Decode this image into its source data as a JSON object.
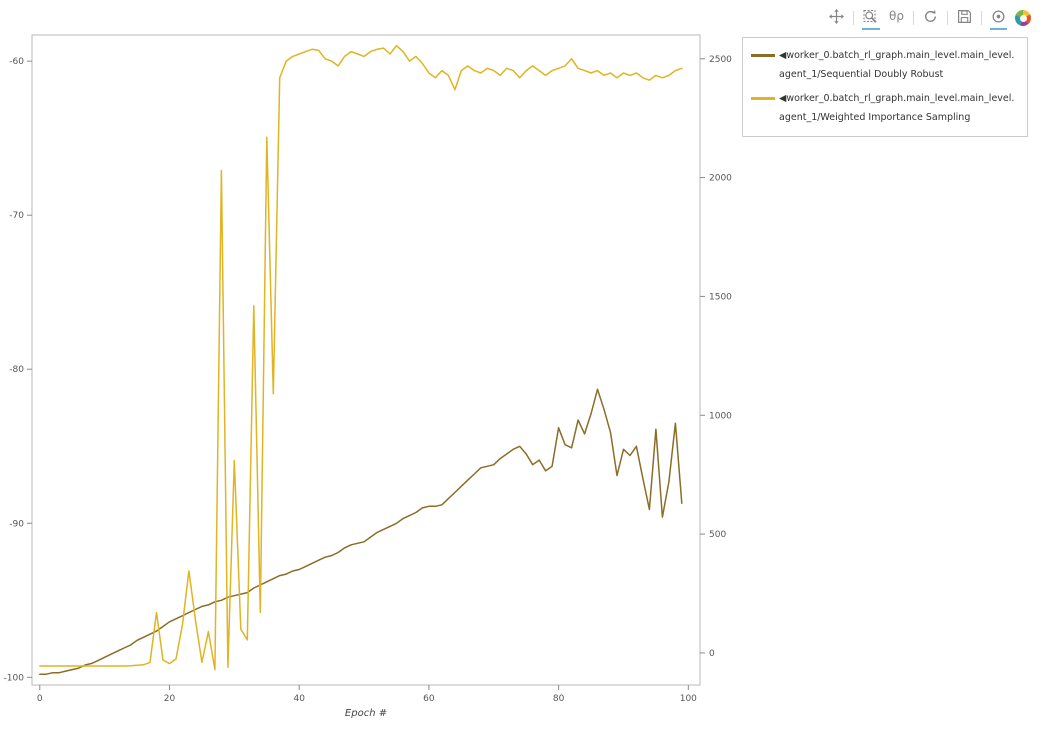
{
  "toolbar": {
    "tools": [
      "pan",
      "box-zoom",
      "wheel-zoom",
      "reset",
      "save",
      "hover"
    ],
    "active_tools": [
      "box-zoom",
      "hover"
    ],
    "wheel_zoom_glyph": "θρ",
    "icons": {
      "pan": "four-arrow-cross",
      "box-zoom": "magnifier-with-dashed-box",
      "wheel-zoom": "θρ",
      "reset": "circular-arrow",
      "save": "floppy-disk",
      "hover": "circle-with-dot",
      "logo": "bokeh-color-wheel"
    },
    "accent_color": "#73b0dd"
  },
  "legend": {
    "entries": [
      {
        "marker": "◀",
        "label": "worker_0.batch_rl_graph.main_level.main_level.agent_1/Sequential Doubly Robust",
        "color": "#8a6d26"
      },
      {
        "marker": "◀",
        "label": "worker_0.batch_rl_graph.main_level.main_level.agent_1/Weighted Importance Sampling",
        "color": "#e0b422"
      }
    ]
  },
  "chart_data": {
    "type": "line",
    "title": "",
    "xlabel": "Epoch #",
    "ylabel": "",
    "grid": false,
    "legend_position": "outside-top-right",
    "x_range": [
      -1.2,
      101.8
    ],
    "y_left_range": [
      -100.5,
      -58.3
    ],
    "y_right_range": [
      -135,
      2600
    ],
    "x_ticks": [
      0,
      20,
      40,
      60,
      80,
      100
    ],
    "y_left_ticks": [
      -100,
      -90,
      -80,
      -70,
      -60
    ],
    "y_right_ticks": [
      0,
      500,
      1000,
      1500,
      2000,
      2500
    ],
    "series": [
      {
        "name": "worker_0.batch_rl_graph.main_level.main_level.agent_1/Sequential Doubly Robust",
        "axis": "left",
        "color": "#8a6d26",
        "x": [
          0,
          1,
          2,
          3,
          4,
          5,
          6,
          7,
          8,
          9,
          10,
          11,
          12,
          13,
          14,
          15,
          16,
          17,
          18,
          19,
          20,
          21,
          22,
          23,
          24,
          25,
          26,
          27,
          28,
          29,
          30,
          31,
          32,
          33,
          34,
          35,
          36,
          37,
          38,
          39,
          40,
          41,
          42,
          43,
          44,
          45,
          46,
          47,
          48,
          49,
          50,
          51,
          52,
          53,
          54,
          55,
          56,
          57,
          58,
          59,
          60,
          61,
          62,
          63,
          64,
          65,
          66,
          67,
          68,
          69,
          70,
          71,
          72,
          73,
          74,
          75,
          76,
          77,
          78,
          79,
          80,
          81,
          82,
          83,
          84,
          85,
          86,
          87,
          88,
          89,
          90,
          91,
          92,
          93,
          94,
          95,
          96,
          97,
          98,
          99
        ],
        "y": [
          -99.8,
          -99.8,
          -99.7,
          -99.7,
          -99.6,
          -99.5,
          -99.4,
          -99.2,
          -99.1,
          -98.9,
          -98.7,
          -98.5,
          -98.3,
          -98.1,
          -97.9,
          -97.6,
          -97.4,
          -97.2,
          -97.0,
          -96.7,
          -96.4,
          -96.2,
          -96.0,
          -95.8,
          -95.6,
          -95.4,
          -95.3,
          -95.1,
          -95.0,
          -94.8,
          -94.7,
          -94.6,
          -94.5,
          -94.2,
          -94.0,
          -93.8,
          -93.6,
          -93.4,
          -93.3,
          -93.1,
          -93.0,
          -92.8,
          -92.6,
          -92.4,
          -92.2,
          -92.1,
          -91.9,
          -91.6,
          -91.4,
          -91.3,
          -91.2,
          -90.9,
          -90.6,
          -90.4,
          -90.2,
          -90.0,
          -89.7,
          -89.5,
          -89.3,
          -89.0,
          -88.9,
          -88.9,
          -88.8,
          -88.4,
          -88.0,
          -87.6,
          -87.2,
          -86.8,
          -86.4,
          -86.3,
          -86.2,
          -85.8,
          -85.5,
          -85.2,
          -85.0,
          -85.5,
          -86.2,
          -85.9,
          -86.6,
          -86.3,
          -83.8,
          -84.9,
          -85.1,
          -83.3,
          -84.2,
          -82.9,
          -81.3,
          -82.6,
          -84.1,
          -86.9,
          -85.2,
          -85.6,
          -85.0,
          -87.1,
          -89.1,
          -83.9,
          -89.6,
          -87.3,
          -83.5,
          -88.7
        ]
      },
      {
        "name": "worker_0.batch_rl_graph.main_level.main_level.agent_1/Weighted Importance Sampling",
        "axis": "right",
        "color": "#e0b422",
        "x": [
          0,
          1,
          2,
          3,
          4,
          5,
          6,
          7,
          8,
          9,
          10,
          11,
          12,
          13,
          14,
          15,
          16,
          17,
          18,
          19,
          20,
          21,
          22,
          23,
          24,
          25,
          26,
          27,
          28,
          29,
          30,
          31,
          32,
          33,
          34,
          35,
          36,
          37,
          38,
          39,
          40,
          41,
          42,
          43,
          44,
          45,
          46,
          47,
          48,
          49,
          50,
          51,
          52,
          53,
          54,
          55,
          56,
          57,
          58,
          59,
          60,
          61,
          62,
          63,
          64,
          65,
          66,
          67,
          68,
          69,
          70,
          71,
          72,
          73,
          74,
          75,
          76,
          77,
          78,
          79,
          80,
          81,
          82,
          83,
          84,
          85,
          86,
          87,
          88,
          89,
          90,
          91,
          92,
          93,
          94,
          95,
          96,
          97,
          98,
          99
        ],
        "y": [
          -55,
          -55,
          -55,
          -55,
          -55,
          -55,
          -55,
          -55,
          -55,
          -55,
          -55,
          -55,
          -55,
          -55,
          -54,
          -52,
          -50,
          -40,
          170,
          -30,
          -45,
          -25,
          120,
          345,
          140,
          -40,
          90,
          -70,
          2030,
          -60,
          810,
          100,
          55,
          1460,
          170,
          2170,
          1090,
          2420,
          2490,
          2510,
          2520,
          2530,
          2540,
          2535,
          2500,
          2490,
          2470,
          2510,
          2530,
          2520,
          2510,
          2530,
          2540,
          2545,
          2520,
          2555,
          2530,
          2490,
          2510,
          2480,
          2440,
          2420,
          2450,
          2430,
          2370,
          2450,
          2470,
          2450,
          2440,
          2460,
          2450,
          2430,
          2460,
          2450,
          2420,
          2450,
          2470,
          2450,
          2430,
          2450,
          2460,
          2470,
          2500,
          2460,
          2450,
          2440,
          2450,
          2430,
          2440,
          2420,
          2440,
          2430,
          2440,
          2420,
          2410,
          2430,
          2420,
          2430,
          2450,
          2460
        ]
      }
    ]
  }
}
